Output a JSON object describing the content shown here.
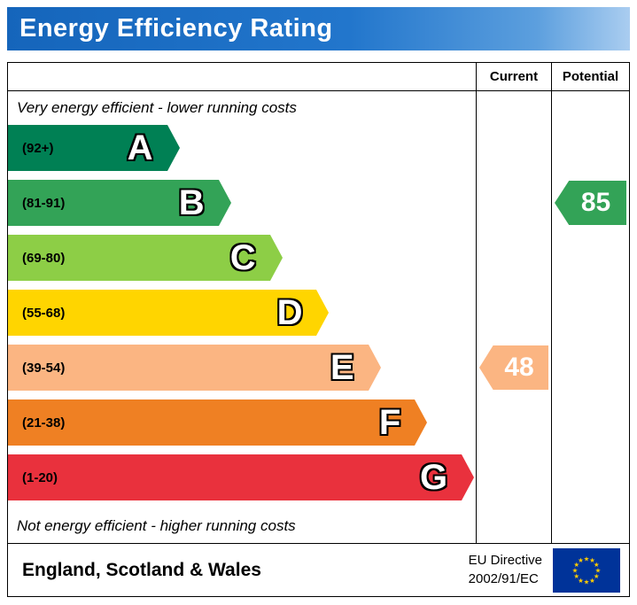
{
  "header": {
    "title": "Energy Efficiency Rating",
    "bar_color_left": "#1565bb",
    "bar_color_right": "#aacdf0"
  },
  "columns": {
    "current": "Current",
    "potential": "Potential"
  },
  "notes": {
    "top": "Very energy efficient - lower running costs",
    "bottom": "Not energy efficient - higher running costs"
  },
  "chart_data": {
    "type": "bar",
    "title": "Energy Efficiency Rating",
    "categories": [
      "A",
      "B",
      "C",
      "D",
      "E",
      "F",
      "G"
    ],
    "bands": [
      {
        "letter": "A",
        "range": "(92+)",
        "color": "#008054",
        "length_pct": 34
      },
      {
        "letter": "B",
        "range": "(81-91)",
        "color": "#33a357",
        "length_pct": 45
      },
      {
        "letter": "C",
        "range": "(69-80)",
        "color": "#8dce46",
        "length_pct": 56
      },
      {
        "letter": "D",
        "range": "(55-68)",
        "color": "#ffd500",
        "length_pct": 66
      },
      {
        "letter": "E",
        "range": "(39-54)",
        "color": "#fbb582",
        "length_pct": 77
      },
      {
        "letter": "F",
        "range": "(21-38)",
        "color": "#ef8023",
        "length_pct": 87
      },
      {
        "letter": "G",
        "range": "(1-20)",
        "color": "#e9313d",
        "length_pct": 97
      }
    ],
    "current": {
      "value": "48",
      "band": "E",
      "color": "#fbb582",
      "row_index": 4
    },
    "potential": {
      "value": "85",
      "band": "B",
      "color": "#33a357",
      "row_index": 1
    },
    "legend_position": "none",
    "grid": false
  },
  "footer": {
    "region": "England, Scotland & Wales",
    "directive_line1": "EU Directive",
    "directive_line2": "2002/91/EC",
    "flag_blue": "#003399",
    "flag_star_color": "#ffcc00"
  }
}
